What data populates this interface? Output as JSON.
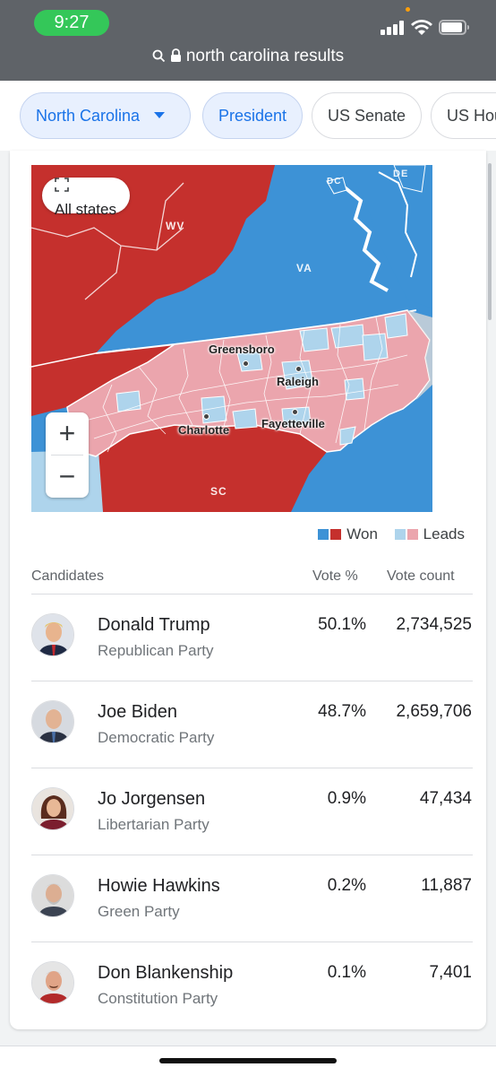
{
  "status": {
    "time": "9:27"
  },
  "browser": {
    "url_text": "north carolina results"
  },
  "chips": [
    {
      "label": "North Carolina",
      "active": true
    },
    {
      "label": "President",
      "active": true
    },
    {
      "label": "US Senate",
      "active": false
    },
    {
      "label": "US Hou",
      "active": false
    }
  ],
  "map": {
    "all_states_label": "All states",
    "zoom_in": "+",
    "zoom_out": "−",
    "state_labels": {
      "wv": "WV",
      "va": "VA",
      "sc": "SC",
      "dc": "DC",
      "de": "DE"
    },
    "cities": {
      "greensboro": "Greensboro",
      "raleigh": "Raleigh",
      "charlotte": "Charlotte",
      "fayetteville": "Fayetteville"
    },
    "colors": {
      "dem_won": "#3d92d6",
      "rep_won": "#c5302d",
      "dem_leads": "#aed4ec",
      "rep_leads": "#eba5ad"
    }
  },
  "legend": {
    "won": "Won",
    "leads": "Leads"
  },
  "table": {
    "headers": {
      "candidates": "Candidates",
      "vote_pct": "Vote %",
      "vote_count": "Vote count"
    },
    "rows": [
      {
        "name": "Donald Trump",
        "party": "Republican Party",
        "pct": "50.1%",
        "count": "2,734,525"
      },
      {
        "name": "Joe Biden",
        "party": "Democratic Party",
        "pct": "48.7%",
        "count": "2,659,706"
      },
      {
        "name": "Jo Jorgensen",
        "party": "Libertarian Party",
        "pct": "0.9%",
        "count": "47,434"
      },
      {
        "name": "Howie Hawkins",
        "party": "Green Party",
        "pct": "0.2%",
        "count": "11,887"
      },
      {
        "name": "Don Blankenship",
        "party": "Constitution Party",
        "pct": "0.1%",
        "count": "7,401"
      }
    ]
  }
}
